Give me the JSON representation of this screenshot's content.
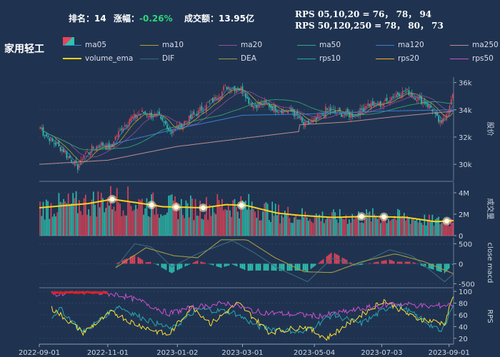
{
  "header": {
    "rank_label": "排名：",
    "rank_value": "14",
    "change_label": "涨幅：",
    "change_value": "-0.26%",
    "volume_label": "成交额：",
    "volume_value": "13.95亿",
    "rps_line1": "RPS 05,10,20 = 76， 78， 94",
    "rps_line2": "RPS 50,120,250 = 78， 80， 73"
  },
  "title": "家用轻工",
  "colors": {
    "up": "#e8435a",
    "down": "#2ec4b0",
    "background": "#1f3350",
    "volume_ema": "#ffd21a",
    "grid": "#3a5070"
  },
  "legend": [
    {
      "name": "ma05",
      "color": "#2a8fbf"
    },
    {
      "name": "ma10",
      "color": "#b8a030"
    },
    {
      "name": "ma20",
      "color": "#9a4aa0"
    },
    {
      "name": "ma50",
      "color": "#2fae7a"
    },
    {
      "name": "ma120",
      "color": "#3a7fd0"
    },
    {
      "name": "ma250",
      "color": "#c08a90"
    },
    {
      "name": "volume_ema",
      "color": "#ffd21a"
    },
    {
      "name": "DIF",
      "color": "#3a6a80"
    },
    {
      "name": "DEA",
      "color": "#a89a40"
    },
    {
      "name": "rps10",
      "color": "#2aa7b0"
    },
    {
      "name": "rps20",
      "color": "#ffb020"
    },
    {
      "name": "rps50",
      "color": "#d050d0"
    }
  ],
  "chart_data": [
    {
      "type": "candlestick",
      "panel": "price",
      "ylabel": "股价",
      "y_ticks": [
        "30k",
        "32k",
        "34k",
        "36k"
      ],
      "ylim": [
        28800,
        36400
      ],
      "x_start": "2022-09-01",
      "x_end": "2023-09-05",
      "anchors": [
        {
          "date": "2022-09-01",
          "close": 32700
        },
        {
          "date": "2022-09-10",
          "close": 31800
        },
        {
          "date": "2022-09-20",
          "close": 31200
        },
        {
          "date": "2022-10-05",
          "close": 29800
        },
        {
          "date": "2022-10-12",
          "close": 30800
        },
        {
          "date": "2022-10-25",
          "close": 31500
        },
        {
          "date": "2022-11-03",
          "close": 31200
        },
        {
          "date": "2022-11-10",
          "close": 32300
        },
        {
          "date": "2022-11-20",
          "close": 33300
        },
        {
          "date": "2022-12-01",
          "close": 33800
        },
        {
          "date": "2022-12-15",
          "close": 33500
        },
        {
          "date": "2022-12-28",
          "close": 32400
        },
        {
          "date": "2023-01-10",
          "close": 33200
        },
        {
          "date": "2023-01-20",
          "close": 33800
        },
        {
          "date": "2023-02-01",
          "close": 34600
        },
        {
          "date": "2023-02-15",
          "close": 35700
        },
        {
          "date": "2023-02-28",
          "close": 35500
        },
        {
          "date": "2023-03-10",
          "close": 34300
        },
        {
          "date": "2023-03-20",
          "close": 34500
        },
        {
          "date": "2023-04-01",
          "close": 34000
        },
        {
          "date": "2023-04-15",
          "close": 33900
        },
        {
          "date": "2023-04-25",
          "close": 32900
        },
        {
          "date": "2023-05-05",
          "close": 33200
        },
        {
          "date": "2023-05-15",
          "close": 34000
        },
        {
          "date": "2023-05-30",
          "close": 33700
        },
        {
          "date": "2023-06-10",
          "close": 33600
        },
        {
          "date": "2023-06-20",
          "close": 34400
        },
        {
          "date": "2023-07-03",
          "close": 34400
        },
        {
          "date": "2023-07-15",
          "close": 35100
        },
        {
          "date": "2023-07-25",
          "close": 35400
        },
        {
          "date": "2023-08-05",
          "close": 34800
        },
        {
          "date": "2023-08-15",
          "close": 34300
        },
        {
          "date": "2023-08-25",
          "close": 32900
        },
        {
          "date": "2023-09-05",
          "close": 34900
        }
      ],
      "ma250_anchors": [
        {
          "date": "2022-09-01",
          "value": 30000
        },
        {
          "date": "2022-11-01",
          "value": 30300
        },
        {
          "date": "2023-01-01",
          "value": 31300
        },
        {
          "date": "2023-03-01",
          "value": 31900
        },
        {
          "date": "2023-04-20",
          "value": 32400
        },
        {
          "date": "2023-04-21",
          "value": 32900
        },
        {
          "date": "2023-06-01",
          "value": 33100
        },
        {
          "date": "2023-07-15",
          "value": 33500
        },
        {
          "date": "2023-09-05",
          "value": 33900
        }
      ],
      "ma120_anchors": [
        {
          "date": "2022-11-01",
          "value": 31400
        },
        {
          "date": "2023-01-01",
          "value": 32600
        },
        {
          "date": "2023-03-01",
          "value": 33600
        },
        {
          "date": "2023-05-01",
          "value": 33700
        },
        {
          "date": "2023-07-01",
          "value": 33900
        },
        {
          "date": "2023-09-05",
          "value": 34000
        }
      ]
    },
    {
      "type": "bar",
      "panel": "volume",
      "ylabel": "成交量",
      "y_ticks": [
        "0",
        "2M",
        "4M"
      ],
      "ylim": [
        0,
        5000000
      ],
      "volume_ema_anchors": [
        {
          "date": "2022-09-01",
          "value": 2600000
        },
        {
          "date": "2022-10-15",
          "value": 3000000
        },
        {
          "date": "2022-11-05",
          "value": 3400000
        },
        {
          "date": "2022-11-25",
          "value": 3100000
        },
        {
          "date": "2022-12-20",
          "value": 2700000
        },
        {
          "date": "2023-01-25",
          "value": 2600000
        },
        {
          "date": "2023-02-15",
          "value": 2900000
        },
        {
          "date": "2023-03-05",
          "value": 2800000
        },
        {
          "date": "2023-04-01",
          "value": 2100000
        },
        {
          "date": "2023-04-20",
          "value": 1900000
        },
        {
          "date": "2023-05-20",
          "value": 1700000
        },
        {
          "date": "2023-06-20",
          "value": 1800000
        },
        {
          "date": "2023-07-25",
          "value": 1700000
        },
        {
          "date": "2023-08-20",
          "value": 1300000
        },
        {
          "date": "2023-09-05",
          "value": 1400000
        }
      ],
      "highlight_dates": [
        "2022-11-05",
        "2022-12-10",
        "2023-01-01",
        "2023-01-25",
        "2023-02-28",
        "2023-06-15",
        "2023-07-05",
        "2023-08-30"
      ]
    },
    {
      "type": "macd",
      "panel": "macd",
      "ylabel": "close macd",
      "y_ticks": [
        "-500",
        "0",
        "500"
      ],
      "ylim": [
        -600,
        650
      ],
      "dif_anchors": [
        {
          "date": "2022-11-08",
          "value": -100
        },
        {
          "date": "2022-11-25",
          "value": 500
        },
        {
          "date": "2022-12-10",
          "value": 420
        },
        {
          "date": "2022-12-28",
          "value": -80
        },
        {
          "date": "2023-01-20",
          "value": 250
        },
        {
          "date": "2023-02-20",
          "value": 580
        },
        {
          "date": "2023-03-10",
          "value": 300
        },
        {
          "date": "2023-04-01",
          "value": -100
        },
        {
          "date": "2023-04-28",
          "value": -450
        },
        {
          "date": "2023-05-20",
          "value": 150
        },
        {
          "date": "2023-06-10",
          "value": -50
        },
        {
          "date": "2023-07-10",
          "value": 350
        },
        {
          "date": "2023-07-30",
          "value": 200
        },
        {
          "date": "2023-08-28",
          "value": -450
        },
        {
          "date": "2023-09-05",
          "value": -250
        }
      ],
      "dea_anchors": [
        {
          "date": "2022-11-08",
          "value": -100
        },
        {
          "date": "2022-12-05",
          "value": 400
        },
        {
          "date": "2022-12-30",
          "value": 200
        },
        {
          "date": "2023-01-20",
          "value": 150
        },
        {
          "date": "2023-02-10",
          "value": 600
        },
        {
          "date": "2023-03-05",
          "value": 600
        },
        {
          "date": "2023-03-30",
          "value": 150
        },
        {
          "date": "2023-04-25",
          "value": -200
        },
        {
          "date": "2023-05-20",
          "value": -220
        },
        {
          "date": "2023-06-15",
          "value": 50
        },
        {
          "date": "2023-07-15",
          "value": 250
        },
        {
          "date": "2023-08-10",
          "value": 50
        },
        {
          "date": "2023-09-05",
          "value": -250
        }
      ]
    },
    {
      "type": "line",
      "panel": "rps",
      "ylabel": "RPS",
      "y_ticks": [
        "20",
        "40",
        "60",
        "80",
        "100"
      ],
      "ylim": [
        10,
        105
      ],
      "series": [
        {
          "name": "rps10",
          "anchors": [
            {
              "date": "2022-09-01",
              "value": 40
            },
            {
              "date": "2022-09-20",
              "value": 70
            },
            {
              "date": "2022-10-10",
              "value": 30
            },
            {
              "date": "2022-11-10",
              "value": 75
            },
            {
              "date": "2022-12-01",
              "value": 55
            },
            {
              "date": "2022-12-28",
              "value": 35
            },
            {
              "date": "2023-01-20",
              "value": 70
            },
            {
              "date": "2023-02-20",
              "value": 65
            },
            {
              "date": "2023-03-15",
              "value": 40
            },
            {
              "date": "2023-04-25",
              "value": 30
            },
            {
              "date": "2023-05-20",
              "value": 60
            },
            {
              "date": "2023-06-15",
              "value": 45
            },
            {
              "date": "2023-07-15",
              "value": 80
            },
            {
              "date": "2023-08-10",
              "value": 50
            },
            {
              "date": "2023-08-25",
              "value": 30
            },
            {
              "date": "2023-09-05",
              "value": 78
            }
          ]
        },
        {
          "name": "rps20",
          "anchors": [
            {
              "date": "2022-09-01",
              "value": 85
            },
            {
              "date": "2022-09-20",
              "value": 60
            },
            {
              "date": "2022-10-10",
              "value": 30
            },
            {
              "date": "2022-11-05",
              "value": 65
            },
            {
              "date": "2022-11-25",
              "value": 45
            },
            {
              "date": "2022-12-25",
              "value": 25
            },
            {
              "date": "2023-01-15",
              "value": 75
            },
            {
              "date": "2023-02-01",
              "value": 45
            },
            {
              "date": "2023-02-25",
              "value": 80
            },
            {
              "date": "2023-03-25",
              "value": 30
            },
            {
              "date": "2023-04-25",
              "value": 40
            },
            {
              "date": "2023-05-15",
              "value": 20
            },
            {
              "date": "2023-06-15",
              "value": 60
            },
            {
              "date": "2023-07-05",
              "value": 85
            },
            {
              "date": "2023-08-01",
              "value": 55
            },
            {
              "date": "2023-08-28",
              "value": 45
            },
            {
              "date": "2023-09-05",
              "value": 94
            }
          ]
        },
        {
          "name": "rps50",
          "anchors": [
            {
              "date": "2022-09-01",
              "value": 95
            },
            {
              "date": "2022-10-15",
              "value": 98
            },
            {
              "date": "2022-11-10",
              "value": 95
            },
            {
              "date": "2022-12-05",
              "value": 80
            },
            {
              "date": "2022-12-25",
              "value": 62
            },
            {
              "date": "2023-01-15",
              "value": 72
            },
            {
              "date": "2023-02-15",
              "value": 80
            },
            {
              "date": "2023-03-15",
              "value": 65
            },
            {
              "date": "2023-04-20",
              "value": 60
            },
            {
              "date": "2023-05-10",
              "value": 58
            },
            {
              "date": "2023-06-15",
              "value": 70
            },
            {
              "date": "2023-07-15",
              "value": 80
            },
            {
              "date": "2023-08-15",
              "value": 74
            },
            {
              "date": "2023-09-05",
              "value": 78
            }
          ]
        }
      ]
    }
  ],
  "x_ticks": [
    "2022-09-01",
    "2022-11-01",
    "2023-01-02",
    "2023-03-01",
    "2023-05-04",
    "2023-07-03",
    "2023-09-01"
  ]
}
